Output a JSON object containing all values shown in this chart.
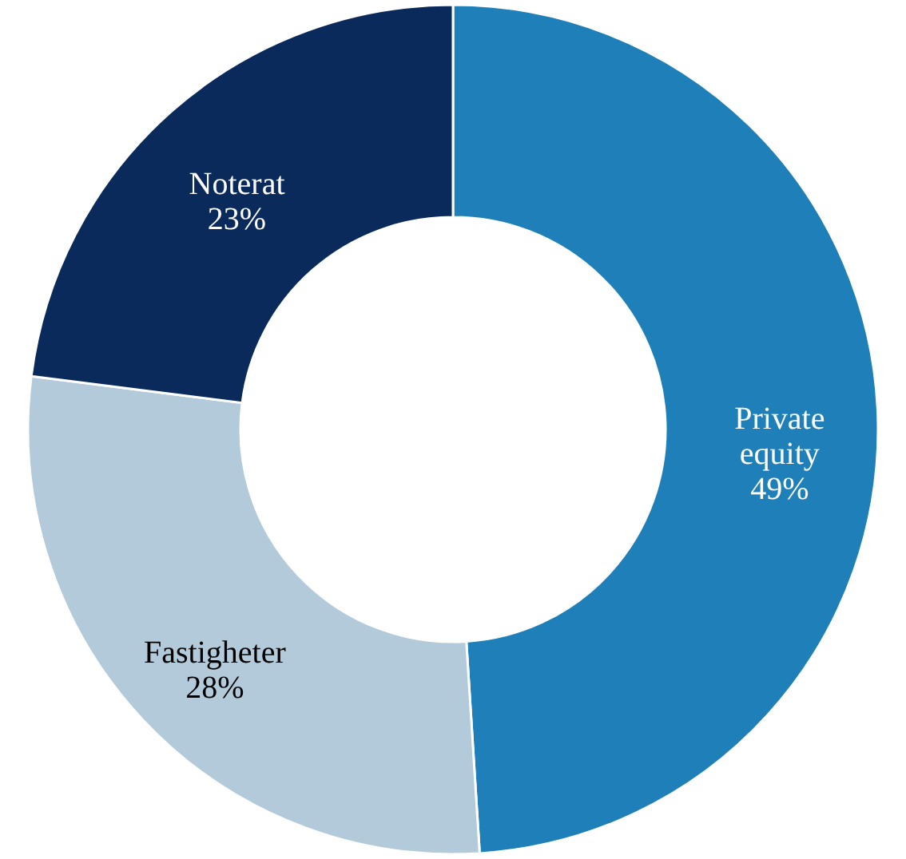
{
  "chart_data": {
    "type": "donut",
    "categories": [
      "Private equity",
      "Fastigheter",
      "Noterat"
    ],
    "values": [
      49,
      28,
      23
    ],
    "value_labels": [
      "49%",
      "28%",
      "23%"
    ],
    "colors": [
      "#1f80b9",
      "#b2cad9",
      "#0a2a5c"
    ]
  }
}
